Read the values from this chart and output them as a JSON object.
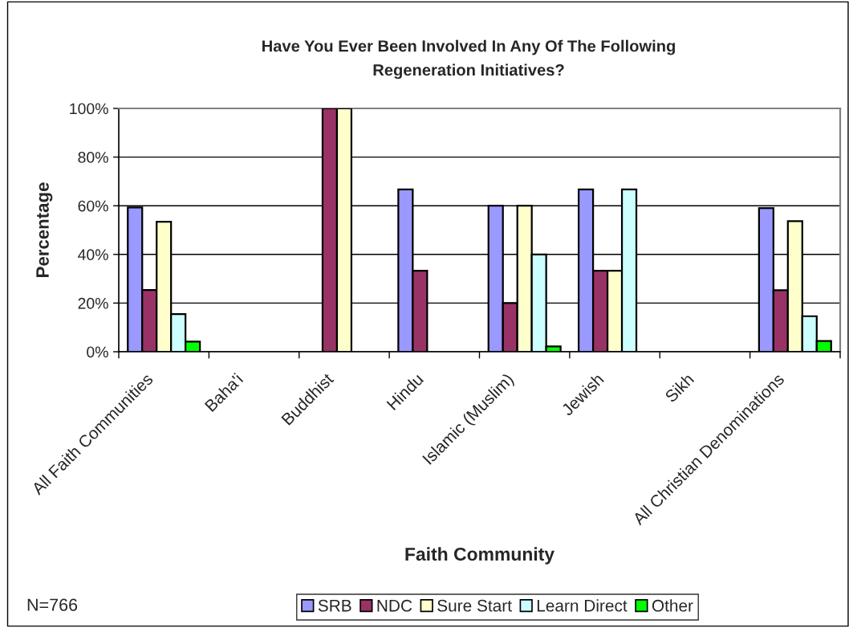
{
  "chart_data": {
    "type": "bar",
    "title": "Have You Ever Been Involved In Any Of The Following\nRegeneration Initiatives?",
    "xlabel": "Faith Community",
    "ylabel": "Percentage",
    "categories": [
      "All Faith Communities",
      "Baha'i",
      "Buddhist",
      "Hindu",
      "Islamic (Muslim)",
      "Jewish",
      "Sikh",
      "All Christian Denominations"
    ],
    "series": [
      {
        "name": "SRB",
        "color": "#9999ff",
        "values": [
          59.3,
          null,
          null,
          66.7,
          60,
          66.7,
          null,
          59.0
        ]
      },
      {
        "name": "NDC",
        "color": "#993366",
        "values": [
          25.4,
          null,
          100,
          33.3,
          20,
          33.3,
          null,
          25.3
        ]
      },
      {
        "name": "Sure Start",
        "color": "#ffffcc",
        "values": [
          53.4,
          null,
          100,
          null,
          60,
          33.3,
          null,
          53.7
        ]
      },
      {
        "name": "Learn Direct",
        "color": "#ccffff",
        "values": [
          15.5,
          null,
          null,
          null,
          40,
          66.7,
          null,
          14.6
        ]
      },
      {
        "name": "Other",
        "color": "#00ff00",
        "values": [
          4.2,
          null,
          null,
          null,
          2.2,
          null,
          null,
          4.4
        ]
      }
    ],
    "ylim": [
      0,
      100
    ],
    "yticks": [
      {
        "value": 0,
        "label": "0%"
      },
      {
        "value": 20,
        "label": "20%"
      },
      {
        "value": 40,
        "label": "40%"
      },
      {
        "value": 60,
        "label": "60%"
      },
      {
        "value": 80,
        "label": "80%"
      },
      {
        "value": 100,
        "label": "100%"
      }
    ],
    "grid": "y",
    "legend": "bottom",
    "annotations": [
      "N=766"
    ]
  }
}
